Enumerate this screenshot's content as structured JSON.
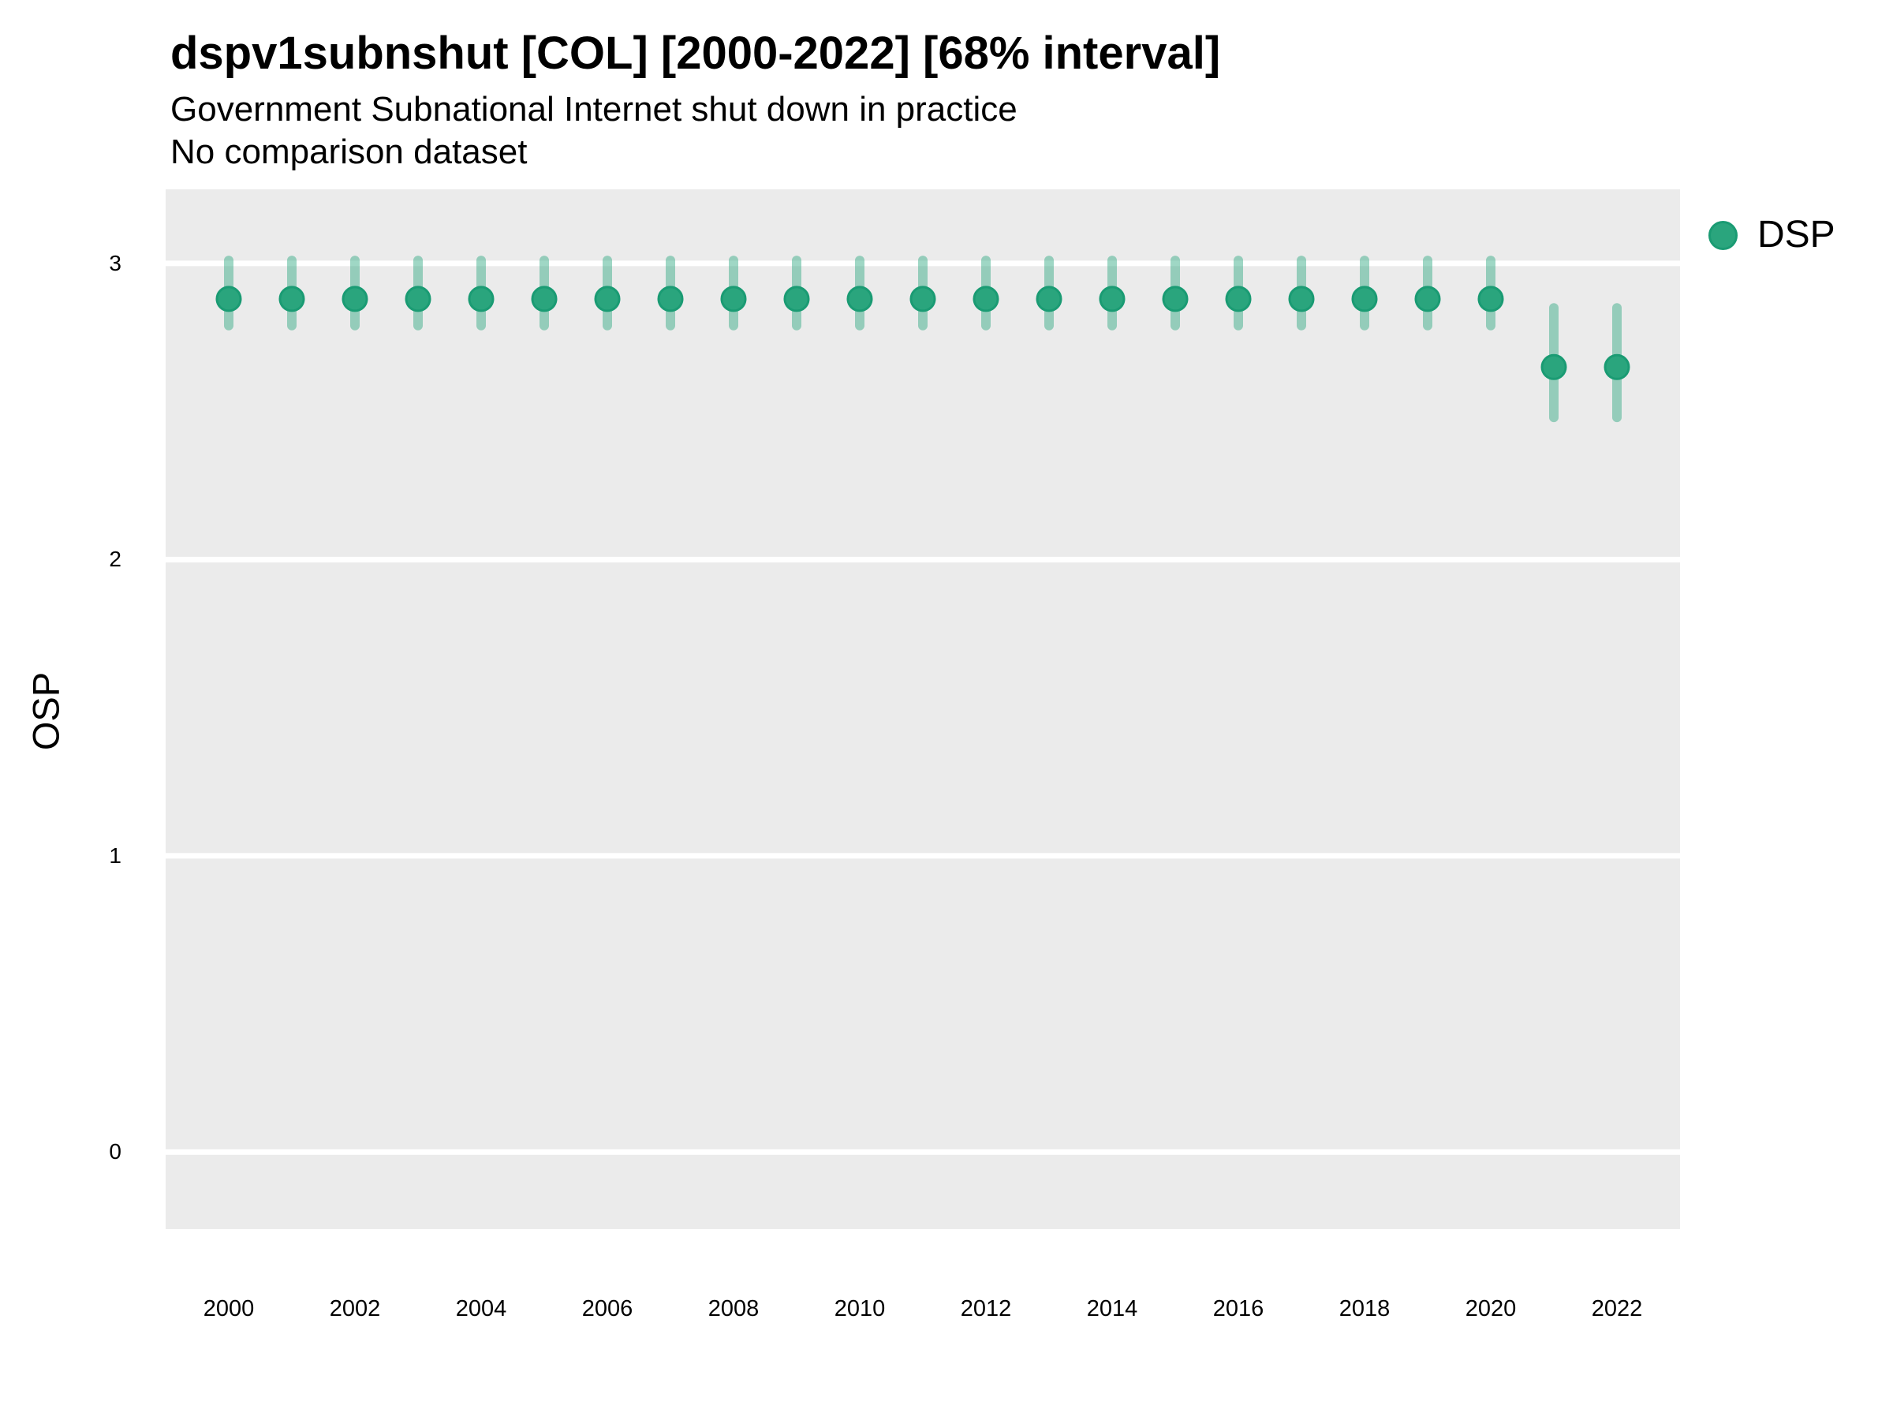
{
  "chart_data": {
    "type": "pointrange",
    "title": "dspv1subnshut [COL] [2000-2022] [68% interval]",
    "subtitle": "Government Subnational Internet shut down in practice",
    "note": "No comparison dataset",
    "xlabel": "",
    "ylabel": "OSP",
    "legend": {
      "label": "DSP",
      "position": "right"
    },
    "x_ticks": [
      2000,
      2002,
      2004,
      2006,
      2008,
      2010,
      2012,
      2014,
      2016,
      2018,
      2020,
      2022
    ],
    "y_ticks": [
      0,
      1,
      2,
      3
    ],
    "xlim": [
      1999,
      2023
    ],
    "ylim": [
      -0.26,
      3.25
    ],
    "grid": "horizontal-major-only",
    "series": [
      {
        "name": "DSP",
        "points": [
          {
            "year": 2000,
            "est": 2.88,
            "lo": 2.79,
            "hi": 3.01
          },
          {
            "year": 2001,
            "est": 2.88,
            "lo": 2.79,
            "hi": 3.01
          },
          {
            "year": 2002,
            "est": 2.88,
            "lo": 2.79,
            "hi": 3.01
          },
          {
            "year": 2003,
            "est": 2.88,
            "lo": 2.79,
            "hi": 3.01
          },
          {
            "year": 2004,
            "est": 2.88,
            "lo": 2.79,
            "hi": 3.01
          },
          {
            "year": 2005,
            "est": 2.88,
            "lo": 2.79,
            "hi": 3.01
          },
          {
            "year": 2006,
            "est": 2.88,
            "lo": 2.79,
            "hi": 3.01
          },
          {
            "year": 2007,
            "est": 2.88,
            "lo": 2.79,
            "hi": 3.01
          },
          {
            "year": 2008,
            "est": 2.88,
            "lo": 2.79,
            "hi": 3.01
          },
          {
            "year": 2009,
            "est": 2.88,
            "lo": 2.79,
            "hi": 3.01
          },
          {
            "year": 2010,
            "est": 2.88,
            "lo": 2.79,
            "hi": 3.01
          },
          {
            "year": 2011,
            "est": 2.88,
            "lo": 2.79,
            "hi": 3.01
          },
          {
            "year": 2012,
            "est": 2.88,
            "lo": 2.79,
            "hi": 3.01
          },
          {
            "year": 2013,
            "est": 2.88,
            "lo": 2.79,
            "hi": 3.01
          },
          {
            "year": 2014,
            "est": 2.88,
            "lo": 2.79,
            "hi": 3.01
          },
          {
            "year": 2015,
            "est": 2.88,
            "lo": 2.79,
            "hi": 3.01
          },
          {
            "year": 2016,
            "est": 2.88,
            "lo": 2.79,
            "hi": 3.01
          },
          {
            "year": 2017,
            "est": 2.88,
            "lo": 2.79,
            "hi": 3.01
          },
          {
            "year": 2018,
            "est": 2.88,
            "lo": 2.79,
            "hi": 3.01
          },
          {
            "year": 2019,
            "est": 2.88,
            "lo": 2.79,
            "hi": 3.01
          },
          {
            "year": 2020,
            "est": 2.88,
            "lo": 2.79,
            "hi": 3.01
          },
          {
            "year": 2021,
            "est": 2.65,
            "lo": 2.48,
            "hi": 2.85
          },
          {
            "year": 2022,
            "est": 2.65,
            "lo": 2.48,
            "hi": 2.85
          }
        ]
      }
    ],
    "colors": {
      "point": "#2aa57d",
      "point_stroke": "#1a9b73",
      "interval": "rgba(42, 166, 127, 0.45)",
      "plot_bg": "#ebebeb",
      "grid": "#ffffff",
      "text": "#000000"
    }
  }
}
